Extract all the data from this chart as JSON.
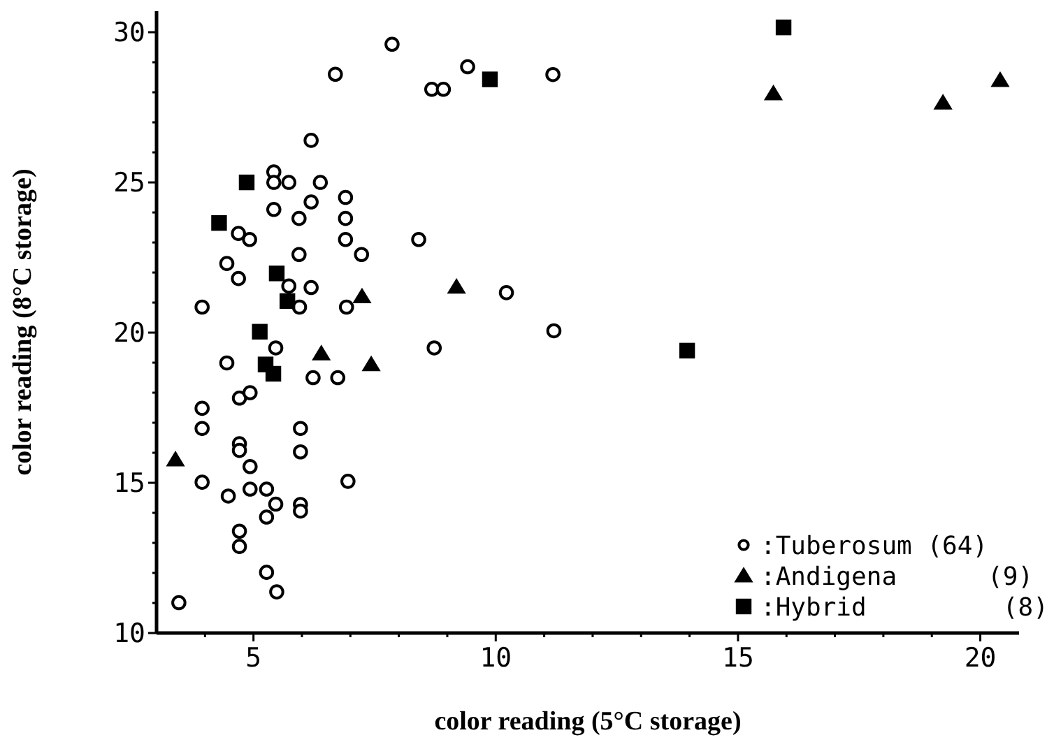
{
  "chart_data": {
    "type": "scatter",
    "xlabel": "color reading (5°C storage)",
    "ylabel": "color reading (8°C storage)",
    "xlim": [
      3,
      20.8
    ],
    "ylim": [
      10,
      30.7
    ],
    "xticks": [
      {
        "value": 4,
        "label": null
      },
      5,
      {
        "value": 6,
        "label": null
      },
      {
        "value": 7,
        "label": null
      },
      {
        "value": 8,
        "label": null
      },
      {
        "value": 9,
        "label": null
      },
      10,
      {
        "value": 11,
        "label": null
      },
      {
        "value": 12,
        "label": null
      },
      {
        "value": 13,
        "label": null
      },
      {
        "value": 14,
        "label": null
      },
      15,
      {
        "value": 16,
        "label": null
      },
      {
        "value": 17,
        "label": null
      },
      {
        "value": 18,
        "label": null
      },
      {
        "value": 19,
        "label": null
      },
      20
    ],
    "yticks": [
      10,
      {
        "value": 11,
        "label": null
      },
      {
        "value": 12,
        "label": null
      },
      {
        "value": 13,
        "label": null
      },
      {
        "value": 14,
        "label": null
      },
      15,
      {
        "value": 16,
        "label": null
      },
      {
        "value": 17,
        "label": null
      },
      {
        "value": 18,
        "label": null
      },
      {
        "value": 19,
        "label": null
      },
      20,
      {
        "value": 21,
        "label": null
      },
      {
        "value": 22,
        "label": null
      },
      {
        "value": 23,
        "label": null
      },
      {
        "value": 24,
        "label": null
      },
      25,
      {
        "value": 26,
        "label": null
      },
      {
        "value": 27,
        "label": null
      },
      {
        "value": 28,
        "label": null
      },
      {
        "value": 29,
        "label": null
      },
      30
    ],
    "legend": "bottom right",
    "grid": false,
    "series": [
      {
        "name": ":Tuberosum (64)",
        "color": "#000000",
        "marker": "circle",
        "x": [
          7.86,
          6.69,
          8.68,
          8.92,
          6.19,
          5.42,
          5.42,
          5.73,
          6.38,
          6.19,
          6.9,
          5.42,
          5.94,
          6.9,
          4.69,
          4.92,
          6.9,
          8.41,
          5.94,
          7.23,
          4.45,
          4.69,
          5.73,
          6.19,
          3.94,
          5.95,
          6.92,
          5.46,
          4.45,
          6.23,
          6.74,
          8.73,
          4.71,
          4.93,
          3.94,
          3.94,
          5.97,
          5.97,
          4.71,
          4.71,
          4.93,
          3.94,
          4.48,
          4.93,
          5.27,
          5.46,
          5.27,
          5.97,
          5.97,
          6.95,
          4.71,
          4.71,
          5.27,
          5.48,
          3.46,
          9.42,
          11.18,
          10.22,
          11.2
        ],
        "values": [
          29.6,
          28.6,
          28.1,
          28.1,
          26.4,
          25.35,
          25.0,
          25.0,
          25.0,
          24.35,
          24.5,
          24.1,
          23.8,
          23.8,
          23.3,
          23.1,
          23.1,
          23.1,
          22.6,
          22.6,
          22.3,
          21.8,
          21.55,
          21.5,
          20.85,
          20.85,
          20.85,
          19.49,
          18.99,
          18.5,
          18.5,
          19.49,
          17.82,
          18.0,
          17.48,
          16.81,
          16.81,
          16.03,
          16.3,
          16.08,
          15.54,
          15.02,
          14.56,
          14.79,
          14.79,
          14.29,
          13.86,
          14.28,
          14.06,
          15.05,
          13.39,
          12.88,
          12.02,
          11.37,
          11.01,
          28.85,
          28.59,
          21.33,
          20.06
        ]
      },
      {
        "name": ":Andigena      (9)",
        "color": "#000000",
        "marker": "triangle",
        "x": [
          3.39,
          6.4,
          7.24,
          7.43,
          9.19,
          15.73,
          19.23,
          20.41
        ],
        "values": [
          15.77,
          19.3,
          21.2,
          18.94,
          21.52,
          27.96,
          27.65,
          28.4
        ]
      },
      {
        "name": ":Hybrid         (8)",
        "color": "#000000",
        "marker": "square",
        "x": [
          4.86,
          4.29,
          5.48,
          5.7,
          5.13,
          5.25,
          5.41,
          9.88,
          13.95,
          15.94
        ],
        "values": [
          25.0,
          23.65,
          21.97,
          21.05,
          20.03,
          18.94,
          18.63,
          28.43,
          19.4,
          30.16
        ]
      }
    ]
  }
}
